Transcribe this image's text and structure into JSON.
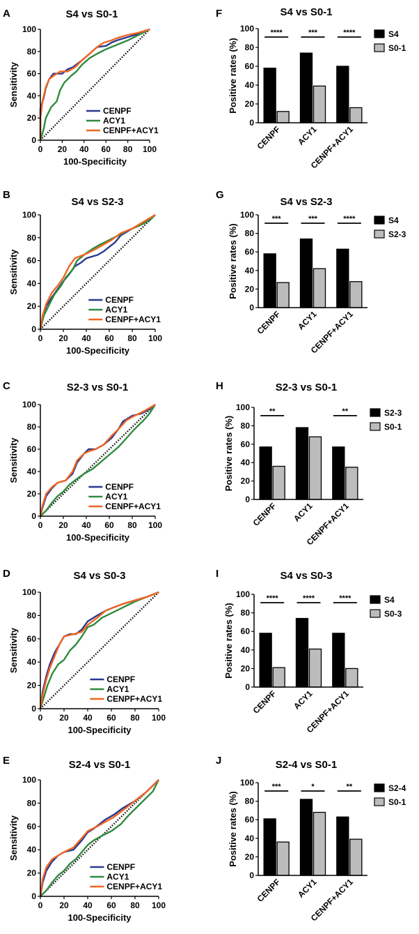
{
  "colors": {
    "cenpf": "#2b3990",
    "acy1": "#2e8b3c",
    "combo": "#f26522",
    "bar_dark": "#000000",
    "bar_light": "#bcbcbc",
    "diagonal": "#000000"
  },
  "chart_data": [
    {
      "type": "line",
      "panel": "A",
      "title": "S4 vs S0-1",
      "xlabel": "100-Specificity",
      "ylabel": "Sensitivity",
      "xlim": [
        0,
        100
      ],
      "ylim": [
        0,
        100
      ],
      "xticks": [
        "0",
        "20",
        "40",
        "60",
        "80",
        "100"
      ],
      "yticks": [
        "0",
        "20",
        "40",
        "60",
        "80",
        "100"
      ],
      "legend_position": "bottom-right",
      "series": [
        {
          "name": "CENPF",
          "color_key": "cenpf",
          "x": [
            0,
            0,
            3,
            5,
            8,
            12,
            20,
            25,
            30,
            38,
            45,
            52,
            60,
            65,
            70,
            80,
            90,
            100
          ],
          "y": [
            0,
            28,
            38,
            47,
            55,
            60,
            60,
            64,
            66,
            72,
            78,
            84,
            85,
            88,
            90,
            93,
            96,
            100
          ]
        },
        {
          "name": "ACY1",
          "color_key": "acy1",
          "x": [
            0,
            3,
            5,
            10,
            15,
            18,
            22,
            28,
            33,
            38,
            45,
            52,
            60,
            70,
            80,
            90,
            100
          ],
          "y": [
            0,
            10,
            20,
            30,
            35,
            45,
            52,
            58,
            62,
            68,
            74,
            78,
            82,
            86,
            90,
            95,
            100
          ]
        },
        {
          "name": "CENPF+ACY1",
          "color_key": "combo",
          "x": [
            0,
            0,
            2,
            5,
            8,
            12,
            18,
            25,
            32,
            38,
            45,
            52,
            58,
            65,
            70,
            80,
            90,
            100
          ],
          "y": [
            0,
            20,
            35,
            48,
            55,
            58,
            62,
            62,
            66,
            72,
            78,
            84,
            88,
            90,
            92,
            95,
            97,
            100
          ]
        }
      ]
    },
    {
      "type": "bar",
      "panel": "F",
      "title": "S4 vs S0-1",
      "ylabel": "Positive rates (%)",
      "ylim": [
        0,
        100
      ],
      "yticks": [
        "0",
        "20",
        "40",
        "60",
        "80",
        "100"
      ],
      "categories": [
        "CENPF",
        "ACY1",
        "CENPF+ACY1"
      ],
      "significance": [
        "****",
        "***",
        "****"
      ],
      "legend_position": "top-right",
      "series": [
        {
          "name": "S4",
          "color_key": "bar_dark",
          "values": [
            58,
            74,
            60
          ]
        },
        {
          "name": "S0-1",
          "color_key": "bar_light",
          "values": [
            12,
            39,
            16
          ]
        }
      ]
    },
    {
      "type": "line",
      "panel": "B",
      "title": "S4 vs S2-3",
      "xlabel": "100-Specificity",
      "ylabel": "Sensitivity",
      "xlim": [
        0,
        100
      ],
      "ylim": [
        0,
        100
      ],
      "xticks": [
        "0",
        "20",
        "40",
        "60",
        "80",
        "100"
      ],
      "yticks": [
        "0",
        "20",
        "40",
        "60",
        "80",
        "100"
      ],
      "legend_position": "bottom-right",
      "series": [
        {
          "name": "CENPF",
          "color_key": "cenpf",
          "x": [
            0,
            2,
            5,
            10,
            15,
            20,
            25,
            30,
            35,
            40,
            50,
            55,
            60,
            65,
            70,
            80,
            90,
            100
          ],
          "y": [
            0,
            10,
            20,
            28,
            35,
            42,
            48,
            55,
            58,
            62,
            65,
            68,
            72,
            76,
            82,
            88,
            93,
            100
          ]
        },
        {
          "name": "ACY1",
          "color_key": "acy1",
          "x": [
            0,
            3,
            8,
            12,
            18,
            22,
            28,
            32,
            38,
            45,
            52,
            60,
            68,
            75,
            85,
            95,
            100
          ],
          "y": [
            0,
            12,
            22,
            30,
            38,
            45,
            52,
            60,
            65,
            70,
            74,
            78,
            82,
            86,
            90,
            95,
            100
          ]
        },
        {
          "name": "CENPF+ACY1",
          "color_key": "combo",
          "x": [
            0,
            2,
            5,
            10,
            15,
            20,
            25,
            30,
            35,
            40,
            48,
            55,
            62,
            70,
            80,
            90,
            100
          ],
          "y": [
            0,
            12,
            22,
            32,
            38,
            45,
            55,
            62,
            64,
            66,
            70,
            74,
            78,
            84,
            88,
            94,
            100
          ]
        }
      ]
    },
    {
      "type": "bar",
      "panel": "G",
      "title": "S4 vs S2-3",
      "ylabel": "Positive rates (%)",
      "ylim": [
        0,
        100
      ],
      "yticks": [
        "0",
        "20",
        "40",
        "60",
        "80",
        "100"
      ],
      "categories": [
        "CENPF",
        "ACY1",
        "CENPF+ACY1"
      ],
      "significance": [
        "***",
        "***",
        "****"
      ],
      "legend_position": "top-right",
      "series": [
        {
          "name": "S4",
          "color_key": "bar_dark",
          "values": [
            58,
            74,
            63
          ]
        },
        {
          "name": "S2-3",
          "color_key": "bar_light",
          "values": [
            27,
            42,
            28
          ]
        }
      ]
    },
    {
      "type": "line",
      "panel": "C",
      "title": "S2-3 vs S0-1",
      "xlabel": "100-Specificity",
      "ylabel": "Sensitivity",
      "xlim": [
        0,
        100
      ],
      "ylim": [
        0,
        100
      ],
      "xticks": [
        "0",
        "20",
        "40",
        "60",
        "80",
        "100"
      ],
      "yticks": [
        "0",
        "20",
        "40",
        "60",
        "80",
        "100"
      ],
      "legend_position": "bottom-right",
      "series": [
        {
          "name": "CENPF",
          "color_key": "cenpf",
          "x": [
            0,
            2,
            5,
            10,
            15,
            22,
            28,
            32,
            38,
            42,
            48,
            55,
            62,
            68,
            72,
            80,
            88,
            95,
            100
          ],
          "y": [
            0,
            8,
            18,
            25,
            30,
            32,
            38,
            48,
            56,
            60,
            60,
            64,
            70,
            78,
            85,
            90,
            92,
            96,
            100
          ]
        },
        {
          "name": "ACY1",
          "color_key": "acy1",
          "x": [
            0,
            5,
            10,
            15,
            20,
            25,
            30,
            38,
            45,
            52,
            60,
            68,
            75,
            82,
            90,
            95,
            100
          ],
          "y": [
            0,
            5,
            12,
            18,
            22,
            28,
            32,
            38,
            42,
            48,
            55,
            62,
            70,
            78,
            86,
            92,
            100
          ]
        },
        {
          "name": "CENPF+ACY1",
          "color_key": "combo",
          "x": [
            0,
            2,
            5,
            10,
            15,
            22,
            28,
            32,
            38,
            42,
            48,
            55,
            62,
            68,
            75,
            82,
            90,
            100
          ],
          "y": [
            0,
            10,
            20,
            26,
            30,
            32,
            40,
            50,
            56,
            58,
            60,
            64,
            72,
            78,
            86,
            90,
            94,
            100
          ]
        }
      ]
    },
    {
      "type": "bar",
      "panel": "H",
      "title": "S2-3 vs S0-1",
      "ylabel": "Positive rates (%)",
      "ylim": [
        0,
        100
      ],
      "yticks": [
        "0",
        "20",
        "40",
        "60",
        "80",
        "100"
      ],
      "categories": [
        "CENPF",
        "ACY1",
        "CENPF+ACY1"
      ],
      "significance": [
        "**",
        "",
        "**"
      ],
      "legend_position": "top-right",
      "series": [
        {
          "name": "S2-3",
          "color_key": "bar_dark",
          "values": [
            57,
            78,
            57
          ]
        },
        {
          "name": "S0-1",
          "color_key": "bar_light",
          "values": [
            36,
            68,
            35
          ]
        }
      ]
    },
    {
      "type": "line",
      "panel": "D",
      "title": "S4 vs S0-3",
      "xlabel": "100-Specificity",
      "ylabel": "Sensitivity",
      "xlim": [
        0,
        100
      ],
      "ylim": [
        0,
        100
      ],
      "xticks": [
        "0",
        "20",
        "40",
        "60",
        "80",
        "100"
      ],
      "yticks": [
        "0",
        "20",
        "40",
        "60",
        "80",
        "100"
      ],
      "legend_position": "bottom-right",
      "series": [
        {
          "name": "CENPF",
          "color_key": "cenpf",
          "x": [
            0,
            2,
            5,
            8,
            12,
            16,
            20,
            25,
            30,
            35,
            40,
            48,
            55,
            62,
            70,
            80,
            90,
            100
          ],
          "y": [
            0,
            15,
            28,
            38,
            48,
            55,
            62,
            64,
            64,
            68,
            75,
            80,
            84,
            87,
            90,
            93,
            96,
            100
          ]
        },
        {
          "name": "ACY1",
          "color_key": "acy1",
          "x": [
            0,
            3,
            6,
            10,
            15,
            20,
            25,
            30,
            35,
            40,
            45,
            52,
            60,
            70,
            80,
            90,
            100
          ],
          "y": [
            0,
            10,
            20,
            30,
            38,
            42,
            50,
            55,
            62,
            70,
            72,
            78,
            82,
            87,
            92,
            96,
            100
          ]
        },
        {
          "name": "CENPF+ACY1",
          "color_key": "combo",
          "x": [
            0,
            2,
            5,
            8,
            12,
            16,
            20,
            28,
            35,
            40,
            48,
            55,
            62,
            70,
            80,
            90,
            100
          ],
          "y": [
            0,
            12,
            25,
            35,
            45,
            55,
            62,
            64,
            66,
            72,
            78,
            84,
            87,
            90,
            93,
            96,
            100
          ]
        }
      ]
    },
    {
      "type": "bar",
      "panel": "I",
      "title": "S4 vs S0-3",
      "ylabel": "Positive rates (%)",
      "ylim": [
        0,
        100
      ],
      "yticks": [
        "0",
        "20",
        "40",
        "60",
        "80",
        "100"
      ],
      "categories": [
        "CENPF",
        "ACY1",
        "CENPF+ACY1"
      ],
      "significance": [
        "****",
        "****",
        "****"
      ],
      "legend_position": "top-right",
      "series": [
        {
          "name": "S4",
          "color_key": "bar_dark",
          "values": [
            58,
            74,
            58
          ]
        },
        {
          "name": "S0-3",
          "color_key": "bar_light",
          "values": [
            21,
            41,
            20
          ]
        }
      ]
    },
    {
      "type": "line",
      "panel": "E",
      "title": "S2-4 vs S0-1",
      "xlabel": "100-Specificity",
      "ylabel": "Sensitivity",
      "xlim": [
        0,
        100
      ],
      "ylim": [
        0,
        100
      ],
      "xticks": [
        "0",
        "20",
        "40",
        "60",
        "80",
        "100"
      ],
      "yticks": [
        "0",
        "20",
        "40",
        "60",
        "80",
        "100"
      ],
      "legend_position": "bottom-right",
      "series": [
        {
          "name": "CENPF",
          "color_key": "cenpf",
          "x": [
            0,
            2,
            5,
            10,
            15,
            20,
            28,
            35,
            40,
            45,
            50,
            55,
            62,
            70,
            80,
            90,
            100
          ],
          "y": [
            0,
            12,
            22,
            30,
            35,
            38,
            40,
            48,
            55,
            58,
            62,
            66,
            70,
            76,
            82,
            90,
            100
          ]
        },
        {
          "name": "ACY1",
          "color_key": "acy1",
          "x": [
            0,
            5,
            10,
            15,
            20,
            25,
            30,
            35,
            40,
            45,
            52,
            60,
            68,
            75,
            85,
            95,
            100
          ],
          "y": [
            0,
            5,
            12,
            18,
            22,
            28,
            32,
            38,
            44,
            48,
            52,
            56,
            62,
            70,
            80,
            90,
            100
          ]
        },
        {
          "name": "CENPF+ACY1",
          "color_key": "combo",
          "x": [
            0,
            2,
            5,
            10,
            15,
            20,
            28,
            35,
            40,
            48,
            55,
            62,
            70,
            80,
            90,
            100
          ],
          "y": [
            0,
            15,
            25,
            32,
            35,
            38,
            42,
            50,
            56,
            60,
            64,
            68,
            74,
            82,
            90,
            100
          ]
        }
      ]
    },
    {
      "type": "bar",
      "panel": "J",
      "title": "S2-4 vs S0-1",
      "ylabel": "Positive rates (%)",
      "ylim": [
        0,
        100
      ],
      "yticks": [
        "0",
        "20",
        "40",
        "60",
        "80",
        "100"
      ],
      "categories": [
        "CENPF",
        "ACY1",
        "CENPF+ACY1"
      ],
      "significance": [
        "***",
        "*",
        "**"
      ],
      "legend_position": "top-right",
      "series": [
        {
          "name": "S2-4",
          "color_key": "bar_dark",
          "values": [
            61,
            82,
            63
          ]
        },
        {
          "name": "S0-1",
          "color_key": "bar_light",
          "values": [
            36,
            68,
            39
          ]
        }
      ]
    }
  ]
}
